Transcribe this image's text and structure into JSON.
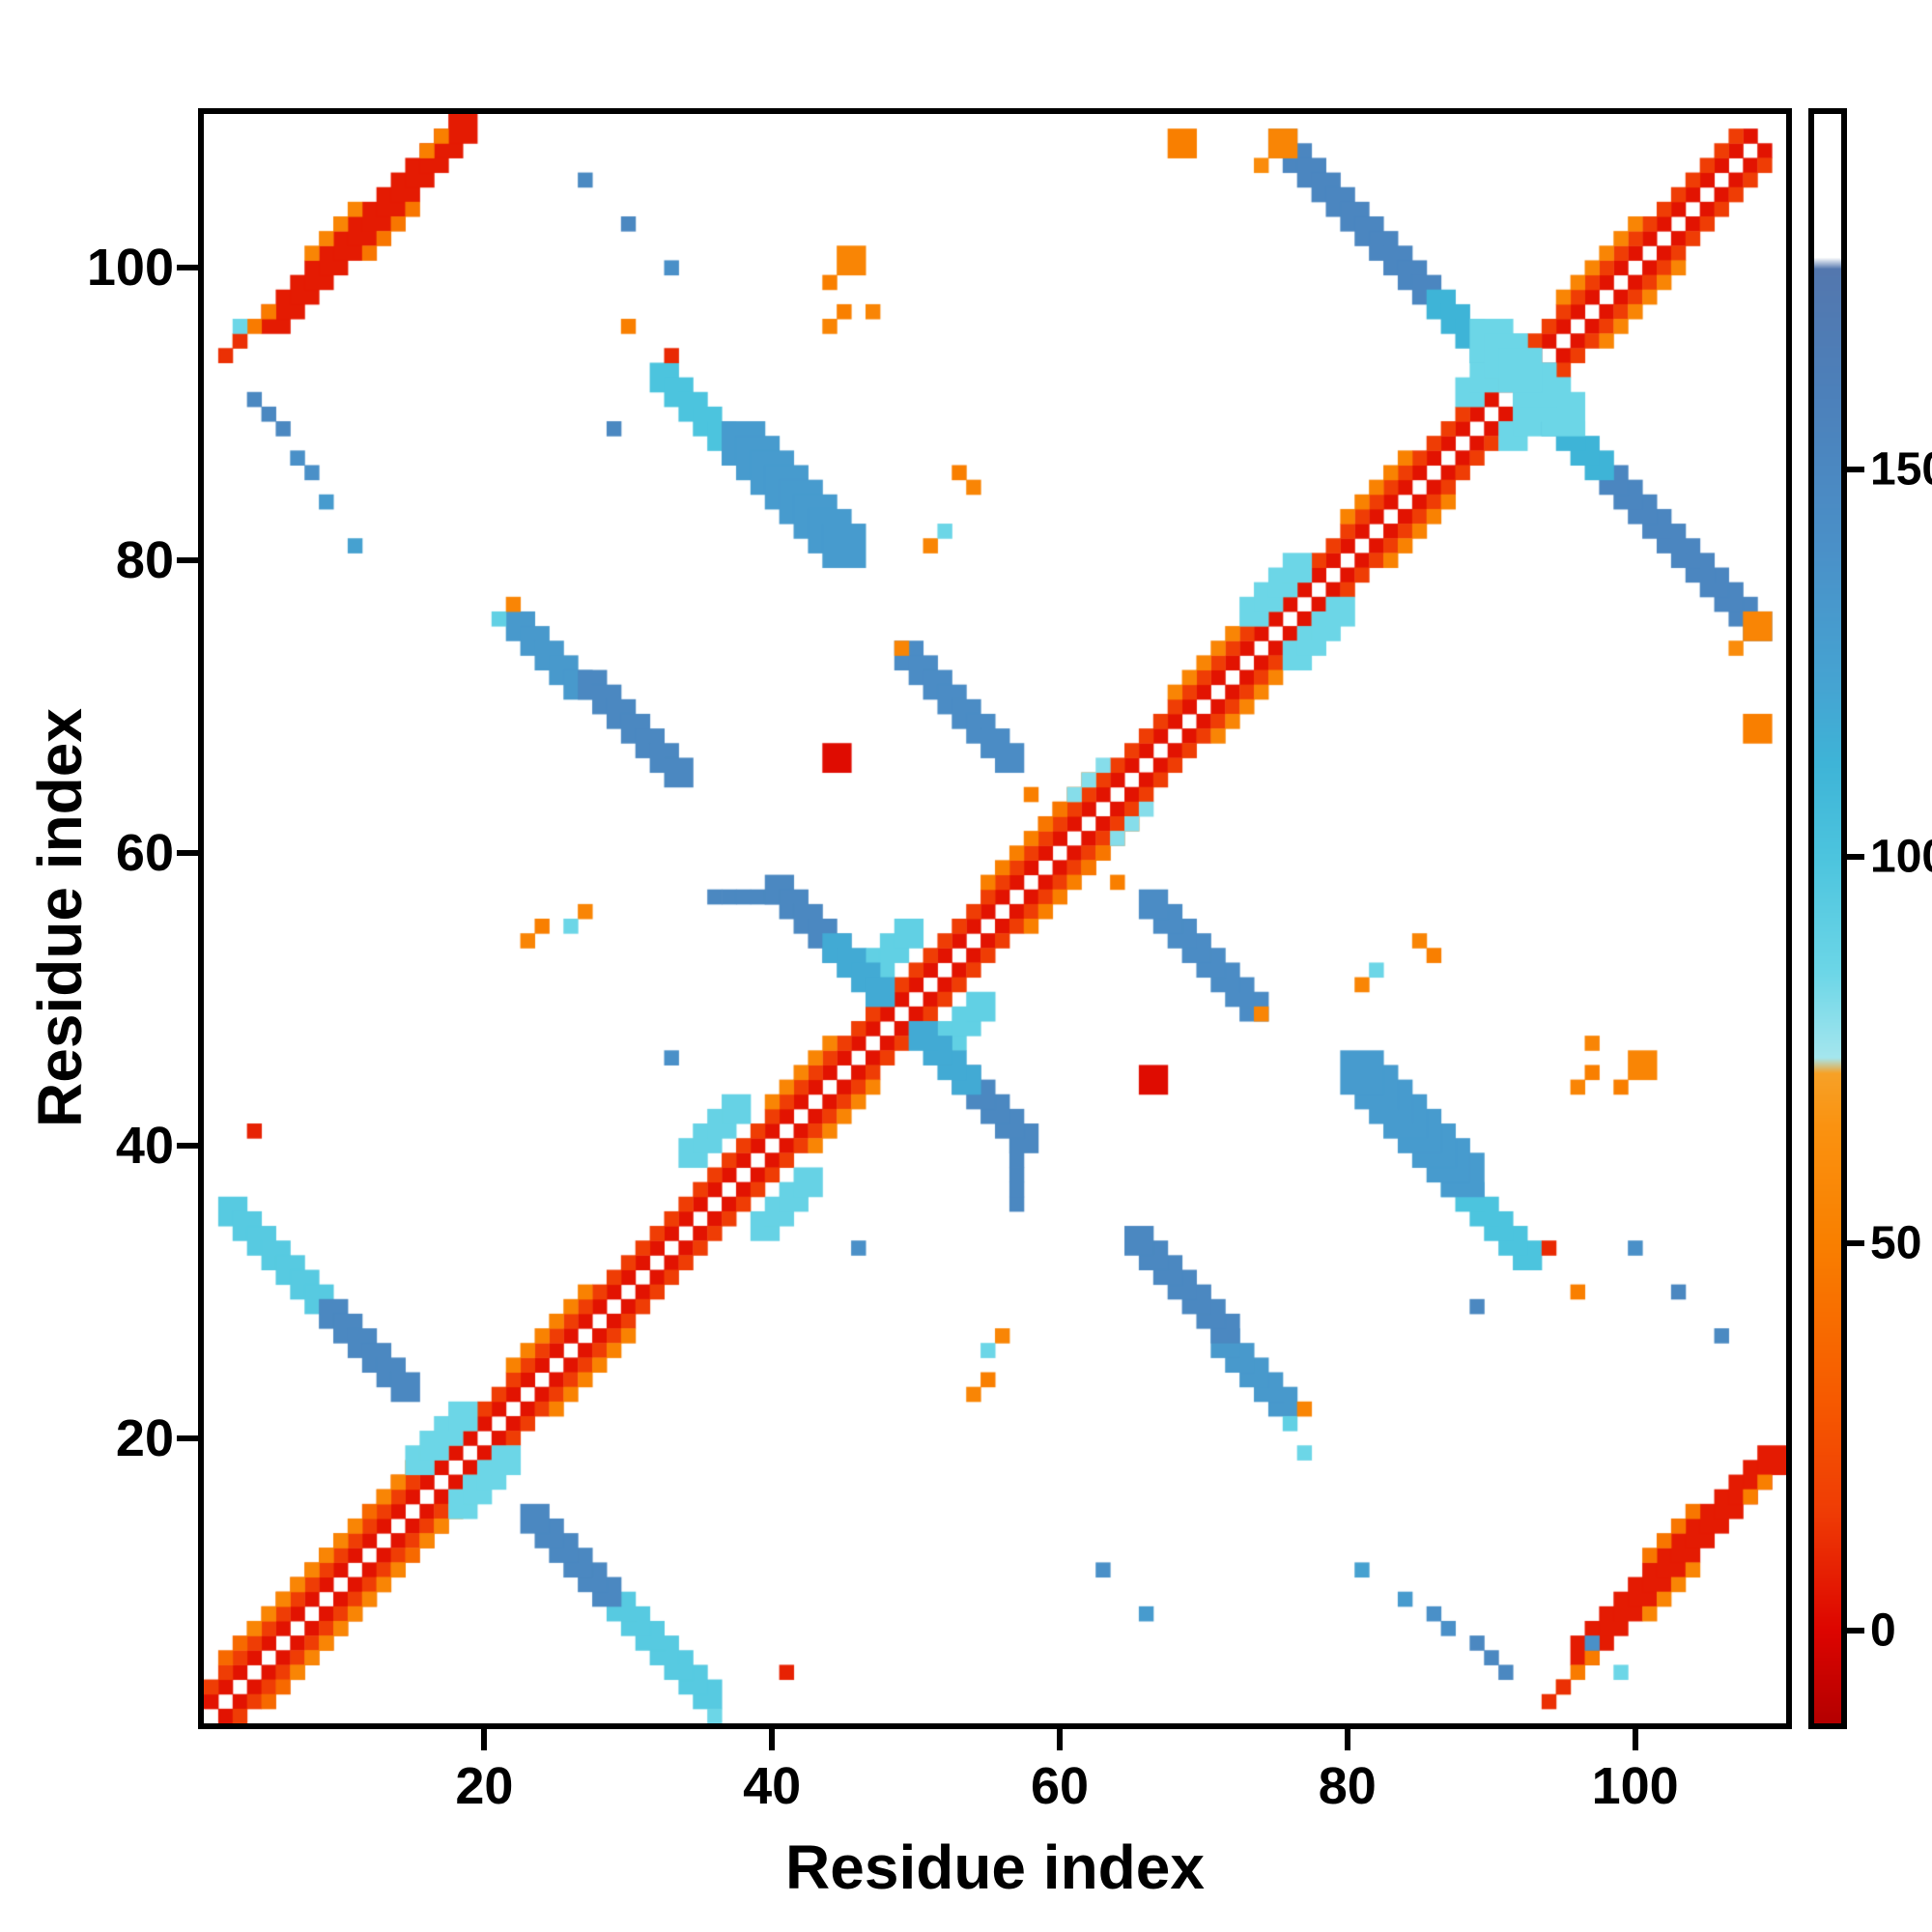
{
  "chart_data": {
    "type": "heatmap",
    "title": "",
    "xlabel": "Residue index",
    "ylabel": "Residue index",
    "xlim": [
      1,
      110
    ],
    "ylim": [
      1,
      110
    ],
    "grid": false,
    "xticks": {
      "values": [
        20,
        40,
        60,
        80,
        100
      ],
      "labels": [
        "20",
        "40",
        "60",
        "80",
        "100"
      ]
    },
    "yticks": {
      "values": [
        20,
        40,
        60,
        80,
        100
      ],
      "labels": [
        "20",
        "40",
        "60",
        "80",
        "100"
      ]
    },
    "colorbar": {
      "position": "right",
      "range": [
        -12,
        196
      ],
      "ticks": {
        "values": [
          0,
          50,
          100,
          150
        ],
        "labels": [
          "0",
          "50",
          "100",
          "150"
        ]
      }
    },
    "colormap_stops": [
      [
        -12,
        "#b40000"
      ],
      [
        0,
        "#dd0500"
      ],
      [
        15,
        "#ef3b05"
      ],
      [
        30,
        "#f65a00"
      ],
      [
        50,
        "#f97f00"
      ],
      [
        65,
        "#fa9210"
      ],
      [
        72,
        "#f7a127"
      ],
      [
        74,
        "#a5e6ee"
      ],
      [
        85,
        "#6cd6e7"
      ],
      [
        100,
        "#4cc4de"
      ],
      [
        112,
        "#3eb4d7"
      ],
      [
        122,
        "#45a4d2"
      ],
      [
        140,
        "#4a90c8"
      ],
      [
        160,
        "#4c80ba"
      ],
      [
        176,
        "#5377ae"
      ],
      [
        177.5,
        "#ffffff"
      ],
      [
        196,
        "#ffffff"
      ]
    ],
    "symmetric": true,
    "segments": [
      {
        "x": 1,
        "y": 2,
        "dx": 1,
        "dy": 1,
        "n": 108,
        "w": 1,
        "v": 4,
        "sym": true
      },
      {
        "x": 1,
        "y": 3,
        "dx": 1,
        "dy": 1,
        "n": 107,
        "w": 1,
        "v": 16,
        "sym": true
      },
      {
        "x": 2,
        "y": 5,
        "dx": 1,
        "dy": 1,
        "n": 13,
        "w": 1,
        "v": 38,
        "sym": true
      },
      {
        "x": 4,
        "y": 7,
        "dx": 1,
        "dy": 1,
        "n": 8,
        "w": 1,
        "v": 55,
        "sym": true
      },
      {
        "x": 13,
        "y": 16,
        "dx": 1,
        "dy": 1,
        "n": 5,
        "w": 1,
        "v": 55,
        "sym": true
      },
      {
        "x": 22,
        "y": 25,
        "dx": 1,
        "dy": 1,
        "n": 6,
        "w": 1,
        "v": 52,
        "sym": true
      },
      {
        "x": 40,
        "y": 43,
        "dx": 1,
        "dy": 1,
        "n": 5,
        "w": 1,
        "v": 55,
        "sym": true
      },
      {
        "x": 55,
        "y": 58,
        "dx": 1,
        "dy": 1,
        "n": 6,
        "w": 1,
        "v": 50,
        "sym": true
      },
      {
        "x": 59,
        "y": 62,
        "dx": 1,
        "dy": 1,
        "n": 4,
        "w": 1,
        "v": 45,
        "sym": true
      },
      {
        "x": 68,
        "y": 71,
        "dx": 1,
        "dy": 1,
        "n": 5,
        "w": 1,
        "v": 55,
        "sym": true
      },
      {
        "x": 80,
        "y": 83,
        "dx": 1,
        "dy": 1,
        "n": 5,
        "w": 1,
        "v": 52,
        "sym": true
      },
      {
        "x": 95,
        "y": 98,
        "dx": 1,
        "dy": 1,
        "n": 6,
        "w": 1,
        "v": 55,
        "sym": true
      },
      {
        "x": 15,
        "y": 18,
        "dx": 1,
        "dy": 1,
        "n": 4,
        "w": 2,
        "v": 85,
        "sym": true
      },
      {
        "x": 34,
        "y": 39,
        "dx": 1,
        "dy": 1,
        "n": 4,
        "w": 2,
        "v": 88,
        "sym": true
      },
      {
        "x": 47,
        "y": 52,
        "dx": 1,
        "dy": 1,
        "n": 3,
        "w": 2,
        "v": 90,
        "sym": true
      },
      {
        "x": 61,
        "y": 64,
        "dx": 1,
        "dy": 1,
        "n": 3,
        "w": 1,
        "v": 80,
        "sym": true
      },
      {
        "x": 73,
        "y": 76,
        "dx": 1,
        "dy": 1,
        "n": 4,
        "w": 2,
        "v": 85,
        "sym": true
      },
      {
        "x": 88,
        "y": 91,
        "dx": 1,
        "dy": 1,
        "n": 4,
        "w": 2,
        "v": 85,
        "sym": true
      },
      {
        "x": 2,
        "y": 35,
        "dx": 1,
        "dy": -1,
        "n": 7,
        "w": 2,
        "v": 95,
        "sym": true
      },
      {
        "x": 9,
        "y": 28,
        "dx": 1,
        "dy": -1,
        "n": 6,
        "w": 2,
        "v": 150,
        "sym": true
      },
      {
        "x": 22,
        "y": 75,
        "dx": 1,
        "dy": -1,
        "n": 5,
        "w": 2,
        "v": 132,
        "sym": true
      },
      {
        "x": 27,
        "y": 71,
        "dx": 1,
        "dy": -1,
        "n": 7,
        "w": 2,
        "v": 150,
        "sym": true
      },
      {
        "x": 36,
        "y": 57,
        "dx": 1,
        "dy": 0,
        "n": 5,
        "w": 1,
        "v": 150,
        "sym": true
      },
      {
        "x": 40,
        "y": 57,
        "dx": 1,
        "dy": -1,
        "n": 5,
        "w": 2,
        "v": 150,
        "sym": true
      },
      {
        "x": 44,
        "y": 53,
        "dx": 1,
        "dy": -1,
        "n": 4,
        "w": 2,
        "v": 118,
        "sym": true
      },
      {
        "x": 32,
        "y": 92,
        "dx": 1,
        "dy": -1,
        "n": 6,
        "w": 2,
        "v": 100,
        "sym": true
      },
      {
        "x": 37,
        "y": 87,
        "dx": 1,
        "dy": -1,
        "n": 8,
        "w": 3,
        "v": 130,
        "sym": true
      },
      {
        "x": 49,
        "y": 73,
        "dx": 1,
        "dy": -1,
        "n": 8,
        "w": 2,
        "v": 145,
        "sym": true
      },
      {
        "x": 75,
        "y": 108,
        "dx": 1,
        "dy": -1,
        "n": 11,
        "w": 2,
        "v": 152,
        "sym": true
      },
      {
        "x": 86,
        "y": 97,
        "dx": 1,
        "dy": -1,
        "n": 4,
        "w": 2,
        "v": 112,
        "sym": true
      },
      {
        "x": 89,
        "y": 94,
        "dx": 1,
        "dy": -1,
        "n": 4,
        "w": 3,
        "v": 85,
        "sym": true
      },
      {
        "x": 5,
        "y": 96,
        "dx": 1,
        "dy": 1,
        "n": 14,
        "w": 2,
        "v": 6,
        "sym": true
      },
      {
        "x": 3,
        "y": 95,
        "dx": 1,
        "dy": 1,
        "n": 3,
        "w": 1,
        "v": 48,
        "sym": true
      },
      {
        "x": 12,
        "y": 101,
        "dx": 1,
        "dy": 1,
        "n": 4,
        "w": 1,
        "v": 45,
        "sym": true
      },
      {
        "x": 8,
        "y": 101,
        "dx": 1,
        "dy": 1,
        "n": 4,
        "w": 1,
        "v": 55,
        "sym": true
      },
      {
        "x": 2,
        "y": 94,
        "dx": 1,
        "dy": 1,
        "n": 2,
        "w": 1,
        "v": 12,
        "sym": true
      },
      {
        "x": 16,
        "y": 108,
        "dx": 1,
        "dy": 1,
        "n": 2,
        "w": 1,
        "v": 50,
        "sym": true
      },
      {
        "x": 4,
        "y": 91,
        "dx": 1,
        "dy": -1,
        "n": 3,
        "w": 1,
        "v": 150,
        "sym": true
      },
      {
        "x": 7,
        "y": 87,
        "dx": 1,
        "dy": -1,
        "n": 2,
        "w": 1,
        "v": 140,
        "sym": true
      }
    ],
    "cells": [
      {
        "x": 9,
        "y": 84,
        "v": 130,
        "w": 1,
        "sym": true
      },
      {
        "x": 11,
        "y": 81,
        "v": 125,
        "w": 1,
        "sym": true
      },
      {
        "x": 44,
        "y": 66,
        "v": 2,
        "w": 2,
        "sym": true
      },
      {
        "x": 41,
        "y": 4,
        "v": 8,
        "w": 1,
        "sym": true
      },
      {
        "x": 45,
        "y": 100,
        "v": 55,
        "w": 2,
        "sym": true
      },
      {
        "x": 44,
        "y": 99,
        "v": 50,
        "w": 1,
        "sym": true
      },
      {
        "x": 53,
        "y": 86,
        "v": 50,
        "w": 1,
        "sym": true
      },
      {
        "x": 54,
        "y": 85,
        "v": 55,
        "w": 1,
        "sym": true
      },
      {
        "x": 23,
        "y": 54,
        "v": 55,
        "w": 1,
        "sym": true
      },
      {
        "x": 24,
        "y": 55,
        "v": 50,
        "w": 1,
        "sym": true
      },
      {
        "x": 27,
        "y": 56,
        "v": 55,
        "w": 1,
        "sym": true
      },
      {
        "x": 26,
        "y": 55,
        "v": 85,
        "w": 1,
        "sym": true
      },
      {
        "x": 108,
        "y": 75,
        "v": 55,
        "w": 2,
        "sym": true
      },
      {
        "x": 107,
        "y": 74,
        "v": 60,
        "w": 1,
        "sym": true
      },
      {
        "x": 103,
        "y": 30,
        "v": 150,
        "w": 1,
        "sym": true
      },
      {
        "x": 106,
        "y": 27,
        "v": 148,
        "w": 1,
        "sym": true
      },
      {
        "x": 100,
        "y": 33,
        "v": 140,
        "w": 1,
        "sym": true
      },
      {
        "x": 29,
        "y": 89,
        "v": 150,
        "w": 1,
        "sym": true
      },
      {
        "x": 96,
        "y": 44,
        "v": 55,
        "w": 1,
        "sym": true
      },
      {
        "x": 97,
        "y": 45,
        "v": 50,
        "w": 1,
        "sym": true
      },
      {
        "x": 97,
        "y": 47,
        "v": 55,
        "w": 1,
        "sym": true
      },
      {
        "x": 96,
        "y": 30,
        "v": 50,
        "w": 1,
        "sym": true
      },
      {
        "x": 94,
        "y": 33,
        "v": 10,
        "w": 1,
        "sym": true
      },
      {
        "x": 68,
        "y": 108,
        "v": 50,
        "w": 2,
        "sym": true
      },
      {
        "x": 36,
        "y": 1,
        "v": 85,
        "w": 1,
        "sym": false
      },
      {
        "x": 51,
        "y": 81,
        "v": 55,
        "w": 1,
        "sym": true
      },
      {
        "x": 52,
        "y": 82,
        "v": 85,
        "w": 1,
        "sym": true
      },
      {
        "x": 76,
        "y": 21,
        "v": 90,
        "w": 1,
        "sym": true
      },
      {
        "x": 77,
        "y": 19,
        "v": 85,
        "w": 1,
        "sym": false
      },
      {
        "x": 99,
        "y": 4,
        "v": 85,
        "w": 1,
        "sym": false
      },
      {
        "x": 97,
        "y": 6,
        "v": 140,
        "w": 1,
        "sym": false
      },
      {
        "x": 49,
        "y": 74,
        "v": 55,
        "w": 1,
        "sym": true
      },
      {
        "x": 64,
        "y": 58,
        "v": 50,
        "w": 1,
        "sym": true
      },
      {
        "x": 22,
        "y": 77,
        "v": 55,
        "w": 1,
        "sym": true
      },
      {
        "x": 3,
        "y": 96,
        "v": 85,
        "w": 1,
        "sym": false
      },
      {
        "x": 63,
        "y": 11,
        "v": 140,
        "w": 1,
        "sym": false
      },
      {
        "x": 66,
        "y": 8,
        "v": 130,
        "w": 1,
        "sym": false
      },
      {
        "x": 33,
        "y": 46,
        "v": 140,
        "w": 1,
        "sym": true
      }
    ]
  }
}
